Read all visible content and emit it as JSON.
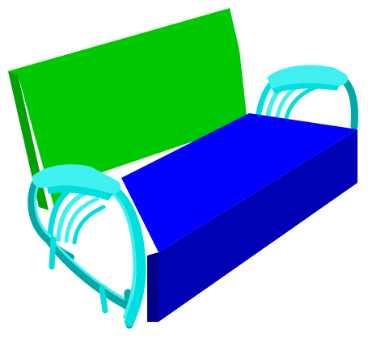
{
  "scene": {
    "subject": "sofa-render",
    "colors": {
      "background": "#ffffff",
      "backrest_front": "#00c800",
      "backrest_side": "#00a000",
      "seat_top": "#0000ff",
      "seat_front": "#0000b4",
      "seat_side": "#000088",
      "frame_light": "#40f0f0",
      "frame_mid": "#00dede",
      "frame_dark": "#00a8a8"
    }
  }
}
